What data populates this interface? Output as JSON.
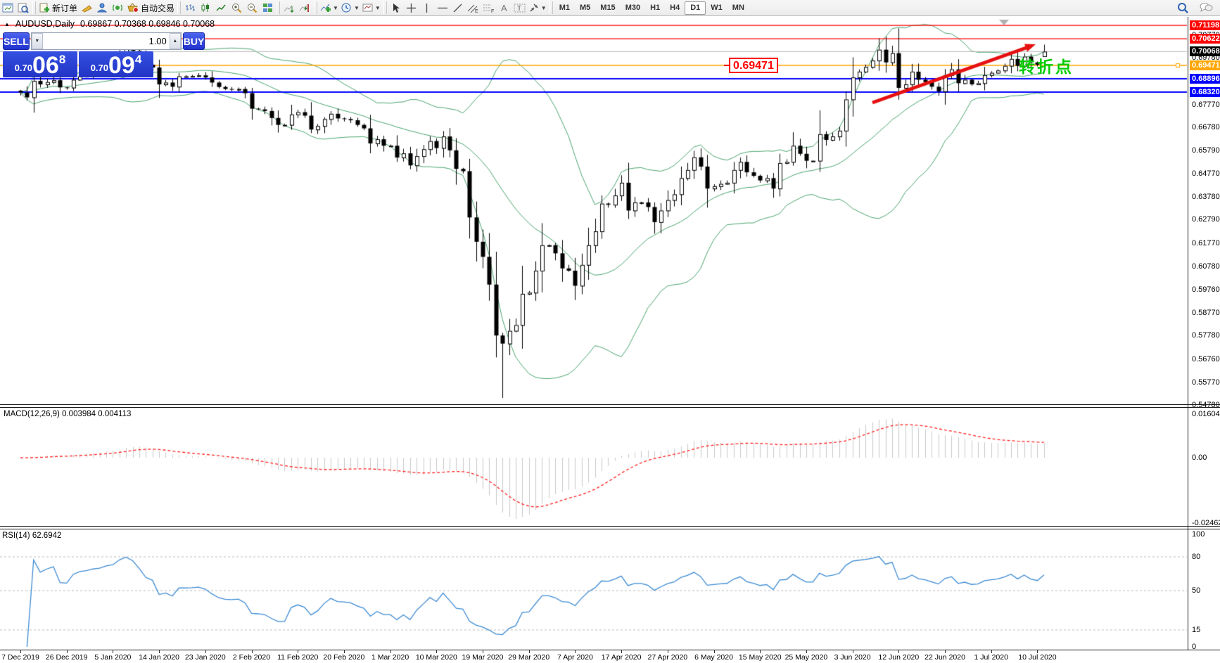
{
  "toolbar": {
    "new_order": "新订单",
    "autotrade": "自动交易",
    "timeframes": [
      "M1",
      "M5",
      "M15",
      "M30",
      "H1",
      "H4",
      "D1",
      "W1",
      "MN"
    ],
    "active_timeframe": "D1"
  },
  "header": {
    "symbol_period": "AUDUSD,Daily",
    "ohlc_text": "0.69867 0.70368 0.69846 0.70068"
  },
  "trade_panel": {
    "sell_label": "SELL",
    "buy_label": "BUY",
    "volume": "1.00",
    "sell_price_main": "0.70",
    "sell_price_big": "06",
    "sell_price_sup": "8",
    "buy_price_main": "0.70",
    "buy_price_big": "09",
    "buy_price_sup": "4"
  },
  "annotations": {
    "price_flag": "0.69471",
    "turning_point": "转折点",
    "turning_point_color": "#00cc00",
    "flag_color": "#ff0000"
  },
  "indicator_labels": {
    "macd": "MACD(12,26,9) 0.003984 0.004113",
    "rsi": "RSI(14) 62.6942"
  },
  "chart_data": [
    {
      "type": "candlestick",
      "symbol": "AUDUSD",
      "timeframe": "Daily",
      "last_ohlc": [
        0.69867,
        0.70368,
        0.69846,
        0.70068
      ],
      "first_open": 0.6838,
      "closes": [
        0.683,
        0.6809,
        0.688,
        0.6865,
        0.6875,
        0.6883,
        0.6852,
        0.6851,
        0.6885,
        0.69,
        0.6905,
        0.6915,
        0.692,
        0.6936,
        0.6946,
        0.699,
        0.7021,
        0.701,
        0.6984,
        0.695,
        0.6938,
        0.6865,
        0.6873,
        0.6855,
        0.69,
        0.69,
        0.6901,
        0.6904,
        0.6895,
        0.6873,
        0.6854,
        0.6845,
        0.6843,
        0.6845,
        0.6827,
        0.676,
        0.6757,
        0.675,
        0.672,
        0.669,
        0.669,
        0.6735,
        0.6745,
        0.673,
        0.667,
        0.6685,
        0.6715,
        0.6738,
        0.6718,
        0.6715,
        0.671,
        0.669,
        0.6675,
        0.661,
        0.6628,
        0.66,
        0.66,
        0.6549,
        0.6567,
        0.6515,
        0.6555,
        0.6585,
        0.662,
        0.659,
        0.664,
        0.658,
        0.65,
        0.649,
        0.629,
        0.6185,
        0.612,
        0.6,
        0.578,
        0.5745,
        0.58,
        0.5825,
        0.596,
        0.5965,
        0.606,
        0.617,
        0.617,
        0.6135,
        0.607,
        0.606,
        0.5995,
        0.6085,
        0.617,
        0.623,
        0.635,
        0.6345,
        0.6385,
        0.644,
        0.632,
        0.6355,
        0.6355,
        0.6335,
        0.627,
        0.632,
        0.6365,
        0.639,
        0.646,
        0.6495,
        0.655,
        0.651,
        0.6415,
        0.6425,
        0.6435,
        0.644,
        0.6495,
        0.653,
        0.6485,
        0.647,
        0.645,
        0.646,
        0.6415,
        0.6525,
        0.653,
        0.66,
        0.6565,
        0.6535,
        0.6535,
        0.665,
        0.6625,
        0.664,
        0.6665,
        0.68,
        0.6895,
        0.692,
        0.694,
        0.6968,
        0.7015,
        0.696,
        0.7,
        0.685,
        0.6865,
        0.692,
        0.6885,
        0.6875,
        0.6855,
        0.6835,
        0.6905,
        0.693,
        0.687,
        0.6885,
        0.6865,
        0.687,
        0.6905,
        0.6915,
        0.6925,
        0.6945,
        0.6975,
        0.6945,
        0.6985,
        0.696,
        0.695,
        0.7007
      ],
      "overrides": {
        "low": [
          [
            73,
            0.551
          ]
        ],
        "high": [
          [
            130,
            0.7064
          ]
        ]
      },
      "bollinger": {
        "period": 20,
        "deviation": 2,
        "color": "#4aa56f"
      },
      "hlines": [
        {
          "value": 0.71198,
          "color": "#ff0000",
          "width": 1.2
        },
        {
          "value": 0.70622,
          "color": "#ff0000",
          "width": 1.2
        },
        {
          "value": 0.70068,
          "color": "#b9b9b9",
          "width": 1
        },
        {
          "value": 0.69471,
          "color": "#ffa600",
          "width": 1.6
        },
        {
          "value": 0.68896,
          "color": "#0000ff",
          "width": 2
        },
        {
          "value": 0.6832,
          "color": "#0000ff",
          "width": 2
        }
      ],
      "axis_badges": [
        {
          "label": "0.71198",
          "value": 0.71198,
          "bg": "#ff0000"
        },
        {
          "label": "0.70622",
          "value": 0.70622,
          "bg": "#ff0000"
        },
        {
          "label": "0.70068",
          "value": 0.70068,
          "bg": "#000000"
        },
        {
          "label": "0.69471",
          "value": 0.69471,
          "bg": "#ffa600"
        },
        {
          "label": "0.68896",
          "value": 0.68896,
          "bg": "#0000ff"
        },
        {
          "label": "0.68320",
          "value": 0.6832,
          "bg": "#0000ff"
        }
      ],
      "y_ticks": [
        0.7077,
        0.6978,
        0.6879,
        0.6777,
        0.6678,
        0.6579,
        0.6477,
        0.6378,
        0.6279,
        0.6177,
        0.6078,
        0.5976,
        0.5877,
        0.5778,
        0.5676,
        0.5577,
        0.5478
      ],
      "x_labels": [
        "7 Dec 2019",
        "26 Dec 2019",
        "5 Jan 2020",
        "14 Jan 2020",
        "23 Jan 2020",
        "2 Feb 2020",
        "11 Feb 2020",
        "20 Feb 2020",
        "1 Mar 2020",
        "10 Mar 2020",
        "19 Mar 2020",
        "29 Mar 2020",
        "7 Apr 2020",
        "17 Apr 2020",
        "27 Apr 2020",
        "6 May 2020",
        "15 May 2020",
        "25 May 2020",
        "3 Jun 2020",
        "12 Jun 2020",
        "22 Jun 2020",
        "1 Jul 2020",
        "10 Jul 2020"
      ],
      "ylim": [
        0.5478,
        0.7176
      ],
      "trendline": {
        "from_price_x": 129,
        "to_price_x": 154,
        "color": "#e61010",
        "from": [
          1240,
          146
        ],
        "to": [
          1472,
          63
        ]
      }
    },
    {
      "type": "macd",
      "label": "MACD(12,26,9)",
      "params": [
        12,
        26,
        9
      ],
      "main_value": 0.003984,
      "signal_value": 0.004113,
      "y_ticks": [
        0.016048,
        0.0,
        -0.024625
      ],
      "histogram_color": "#c9c9c9",
      "signal_color": "#ff2020"
    },
    {
      "type": "rsi",
      "label": "RSI(14)",
      "period": 14,
      "value": 62.6942,
      "levels": [
        80,
        50,
        15
      ],
      "y_ticks": [
        100,
        80,
        50,
        15,
        0
      ],
      "line_color": "#3d8bd4",
      "level_color": "#bbbbbb"
    }
  ]
}
